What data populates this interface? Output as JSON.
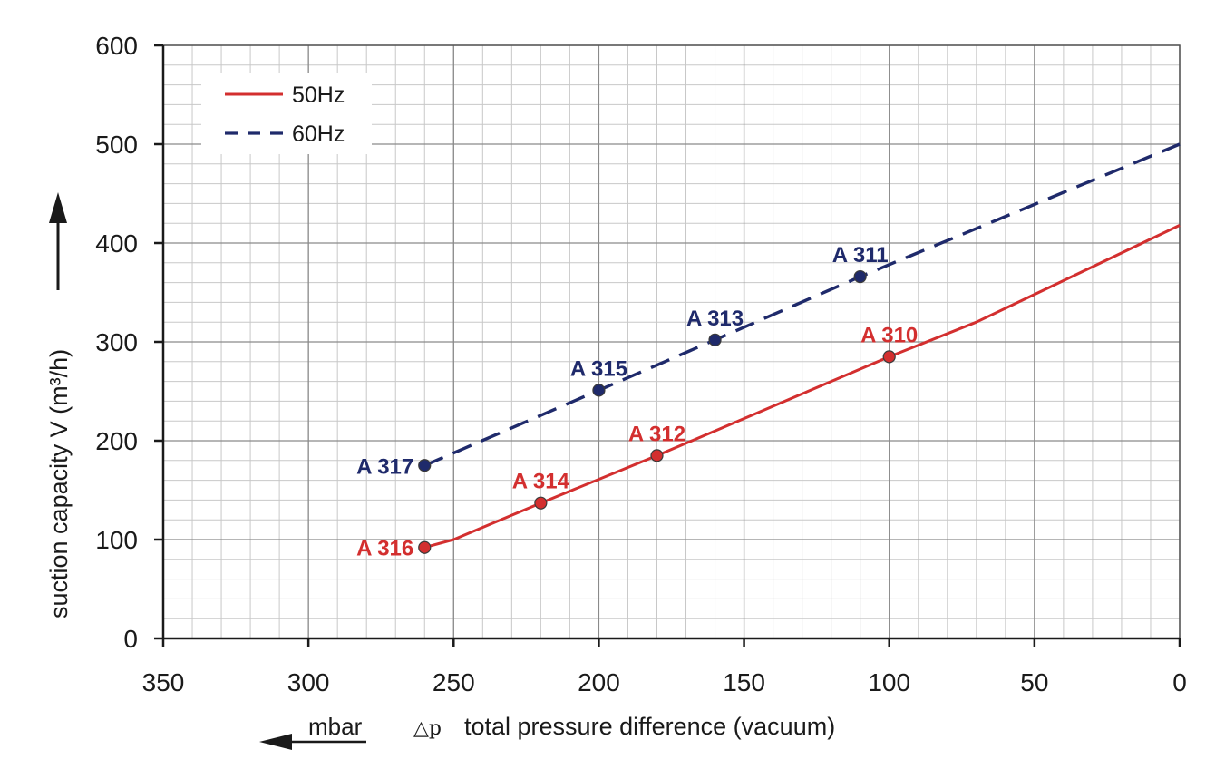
{
  "chart_data": {
    "type": "line",
    "title": "",
    "xlabel_symbol": "△p",
    "xlabel": "total pressure difference (vacuum)",
    "x_unit_label": "mbar",
    "ylabel": "suction capacity V (m³/h)",
    "xlim": [
      350,
      0
    ],
    "ylim": [
      0,
      600
    ],
    "x_ticks": [
      350,
      300,
      250,
      200,
      150,
      100,
      50,
      0
    ],
    "y_ticks": [
      0,
      100,
      200,
      300,
      400,
      500,
      600
    ],
    "x_minor_step": 10,
    "y_minor_step": 20,
    "grid": true,
    "legend_position": "top-left",
    "series": [
      {
        "name": "50Hz",
        "color": "#d32f2f",
        "line_style": "solid",
        "line": [
          [
            260,
            92
          ],
          [
            250,
            100
          ],
          [
            220,
            137
          ],
          [
            180,
            185
          ],
          [
            100,
            285
          ],
          [
            70,
            320
          ],
          [
            0,
            418
          ]
        ],
        "points": [
          {
            "x": 100,
            "y": 285,
            "label": "A 310",
            "label_anchor": "above"
          },
          {
            "x": 180,
            "y": 185,
            "label": "A 312",
            "label_anchor": "above"
          },
          {
            "x": 220,
            "y": 137,
            "label": "A 314",
            "label_anchor": "above"
          },
          {
            "x": 260,
            "y": 92,
            "label": "A 316",
            "label_anchor": "left"
          }
        ]
      },
      {
        "name": "60Hz",
        "color": "#1f2a6b",
        "line_style": "dashed",
        "line": [
          [
            260,
            175
          ],
          [
            200,
            251
          ],
          [
            160,
            302
          ],
          [
            110,
            366
          ],
          [
            0,
            500
          ]
        ],
        "points": [
          {
            "x": 110,
            "y": 366,
            "label": "A 311",
            "label_anchor": "above"
          },
          {
            "x": 160,
            "y": 302,
            "label": "A 313",
            "label_anchor": "above"
          },
          {
            "x": 200,
            "y": 251,
            "label": "A 315",
            "label_anchor": "above"
          },
          {
            "x": 260,
            "y": 175,
            "label": "A 317",
            "label_anchor": "left"
          }
        ]
      }
    ]
  }
}
